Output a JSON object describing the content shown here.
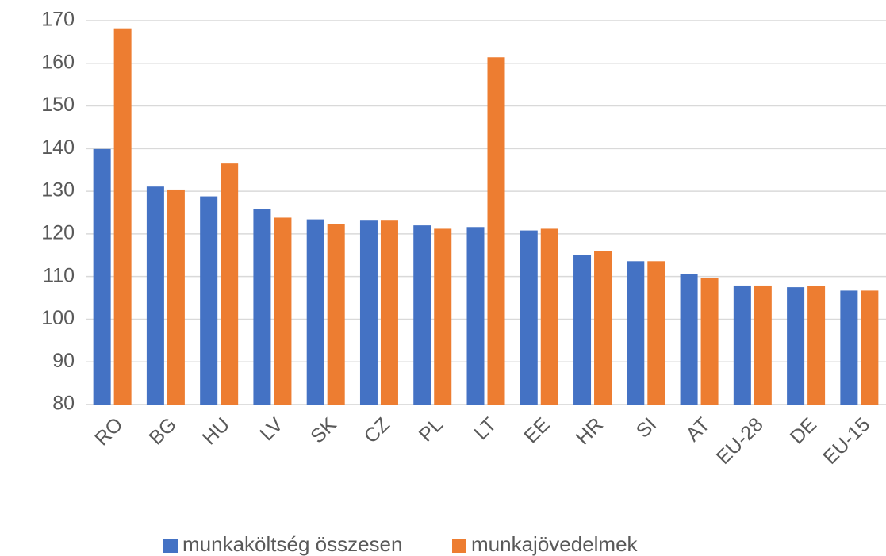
{
  "chart_data": {
    "type": "bar",
    "categories": [
      "RO",
      "BG",
      "HU",
      "LV",
      "SK",
      "CZ",
      "PL",
      "LT",
      "EE",
      "HR",
      "SI",
      "AT",
      "EU-28",
      "DE",
      "EU-15"
    ],
    "series": [
      {
        "name": "munkaköltség összesen",
        "color": "#4472c4",
        "values": [
          139.9,
          131.1,
          128.8,
          125.8,
          123.4,
          123.1,
          122.0,
          121.6,
          120.8,
          115.1,
          113.6,
          110.5,
          107.9,
          107.5,
          106.7
        ]
      },
      {
        "name": "munkajövedelmek",
        "color": "#ed7d31",
        "values": [
          168.2,
          130.4,
          136.5,
          123.8,
          122.3,
          123.1,
          121.2,
          161.4,
          121.2,
          115.9,
          113.6,
          109.7,
          107.9,
          107.8,
          106.7
        ]
      }
    ],
    "ylim": [
      80,
      170
    ],
    "yticks": [
      80,
      90,
      100,
      110,
      120,
      130,
      140,
      150,
      160,
      170
    ],
    "grid": true,
    "legend": "bottom"
  }
}
